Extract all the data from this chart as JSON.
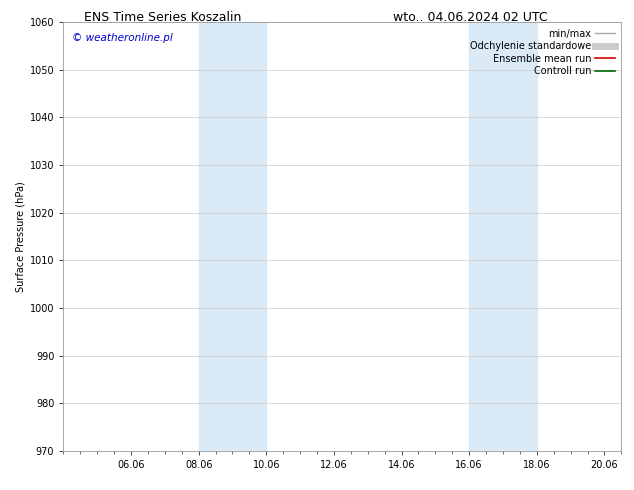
{
  "title_left": "ENS Time Series Koszalin",
  "title_right": "wto.. 04.06.2024 02 UTC",
  "ylabel": "Surface Pressure (hPa)",
  "ylim": [
    970,
    1060
  ],
  "yticks": [
    970,
    980,
    990,
    1000,
    1010,
    1020,
    1030,
    1040,
    1050,
    1060
  ],
  "xtick_labels": [
    "06.06",
    "08.06",
    "10.06",
    "12.06",
    "14.06",
    "16.06",
    "18.06",
    "20.06"
  ],
  "xtick_positions": [
    2,
    4,
    6,
    8,
    10,
    12,
    14,
    16
  ],
  "xlim": [
    0,
    16.5
  ],
  "shaded_regions": [
    {
      "start": 4,
      "end": 6
    },
    {
      "start": 12,
      "end": 14
    }
  ],
  "shaded_color": "#daeaf7",
  "watermark_text": "© weatheronline.pl",
  "watermark_color": "#0000cc",
  "legend_entries": [
    {
      "label": "min/max",
      "color": "#aaaaaa",
      "lw": 1.0
    },
    {
      "label": "Odchylenie standardowe",
      "color": "#cccccc",
      "lw": 5.0
    },
    {
      "label": "Ensemble mean run",
      "color": "#dd0000",
      "lw": 1.2
    },
    {
      "label": "Controll run",
      "color": "#006600",
      "lw": 1.2
    }
  ],
  "bg_color": "#ffffff",
  "grid_color": "#cccccc",
  "title_fontsize": 9,
  "ylabel_fontsize": 7,
  "tick_fontsize": 7,
  "watermark_fontsize": 7.5,
  "legend_fontsize": 7
}
